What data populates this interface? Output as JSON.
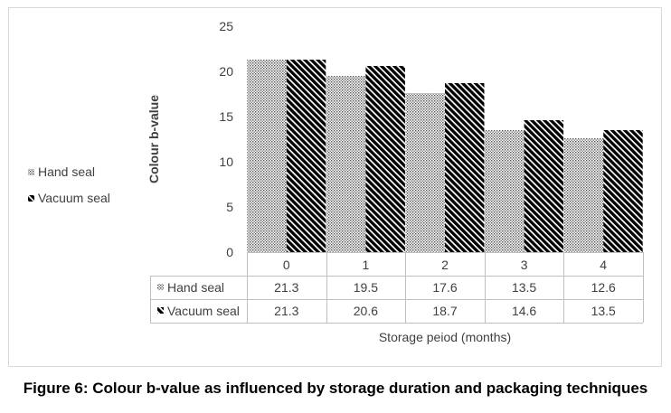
{
  "caption": "Figure 6: Colour b-value as influenced by storage duration and packaging techniques",
  "chart_data": {
    "type": "bar",
    "title": "",
    "xlabel": "Storage peiod (months)",
    "ylabel": "Colour b-value",
    "categories": [
      "0",
      "1",
      "2",
      "3",
      "4"
    ],
    "ylim": [
      0,
      25
    ],
    "yticks": [
      0,
      5,
      10,
      15,
      20,
      25
    ],
    "grid": false,
    "legend_position": "left",
    "data_table": true,
    "series": [
      {
        "name": "Hand seal",
        "values": [
          21.3,
          19.5,
          17.6,
          13.5,
          12.6
        ],
        "pattern": "dots",
        "color": "#555555"
      },
      {
        "name": "Vacuum seal",
        "values": [
          21.3,
          20.6,
          18.7,
          14.6,
          13.5
        ],
        "pattern": "diagonal-stripes",
        "color": "#000000"
      }
    ],
    "table_values": [
      [
        "21.3",
        "19.5",
        "17.6",
        "13.5",
        "12.6"
      ],
      [
        "21.3",
        "20.6",
        "18.7",
        "14.6",
        "13.5"
      ]
    ]
  }
}
